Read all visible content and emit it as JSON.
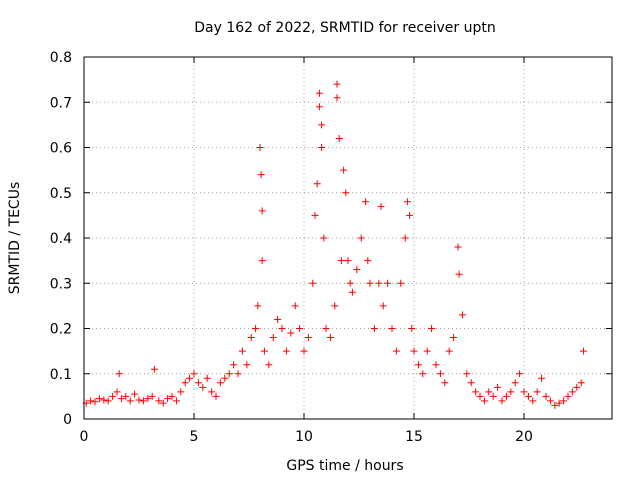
{
  "chart_data": {
    "type": "scatter",
    "title": "Day 162 of 2022, SRMTID for receiver uptn",
    "xlabel": "GPS time / hours",
    "ylabel": "SRMTID / TECUs",
    "xlim": [
      0,
      24
    ],
    "ylim": [
      0,
      0.8
    ],
    "xticks": [
      0,
      5,
      10,
      15,
      20
    ],
    "xtick_labels": [
      "0",
      "5",
      "10",
      "15",
      "20"
    ],
    "yticks": [
      0,
      0.1,
      0.2,
      0.3,
      0.4,
      0.5,
      0.6,
      0.7,
      0.8
    ],
    "ytick_labels": [
      "0",
      "0.1",
      "0.2",
      "0.3",
      "0.4",
      "0.5",
      "0.6",
      "0.7",
      "0.8"
    ],
    "grid": true,
    "marker": "+",
    "color": "#ff0000",
    "series": [
      {
        "name": "SRMTID",
        "x": [
          0.1,
          0.3,
          0.5,
          0.7,
          0.9,
          1.1,
          1.3,
          1.5,
          1.6,
          1.7,
          1.9,
          2.1,
          2.3,
          2.5,
          2.7,
          2.9,
          3.1,
          3.2,
          3.4,
          3.6,
          3.8,
          4.0,
          4.2,
          4.4,
          4.6,
          4.8,
          5.0,
          5.2,
          5.4,
          5.6,
          5.8,
          6.0,
          6.2,
          6.4,
          6.6,
          6.8,
          7.0,
          7.2,
          7.4,
          7.6,
          7.8,
          7.9,
          8.0,
          8.05,
          8.1,
          8.1,
          8.2,
          8.4,
          8.6,
          8.8,
          9.0,
          9.2,
          9.4,
          9.6,
          9.8,
          10.0,
          10.2,
          10.4,
          10.5,
          10.6,
          10.7,
          10.7,
          10.8,
          10.8,
          10.9,
          11.0,
          11.2,
          11.4,
          11.5,
          11.5,
          11.6,
          11.7,
          11.8,
          11.9,
          12.0,
          12.1,
          12.2,
          12.4,
          12.6,
          12.8,
          12.9,
          13.0,
          13.2,
          13.4,
          13.5,
          13.6,
          13.8,
          14.0,
          14.2,
          14.4,
          14.6,
          14.7,
          14.8,
          14.9,
          15.0,
          15.2,
          15.4,
          15.6,
          15.8,
          16.0,
          16.2,
          16.4,
          16.6,
          16.8,
          17.0,
          17.05,
          17.2,
          17.4,
          17.6,
          17.8,
          18.0,
          18.2,
          18.4,
          18.6,
          18.8,
          19.0,
          19.2,
          19.4,
          19.6,
          19.8,
          20.0,
          20.2,
          20.4,
          20.6,
          20.8,
          21.0,
          21.2,
          21.4,
          21.6,
          21.8,
          22.0,
          22.2,
          22.4,
          22.6,
          22.7
        ],
        "y": [
          0.035,
          0.04,
          0.038,
          0.045,
          0.042,
          0.04,
          0.05,
          0.06,
          0.1,
          0.045,
          0.05,
          0.04,
          0.055,
          0.042,
          0.04,
          0.045,
          0.05,
          0.11,
          0.04,
          0.035,
          0.045,
          0.05,
          0.04,
          0.06,
          0.08,
          0.09,
          0.1,
          0.08,
          0.07,
          0.09,
          0.06,
          0.05,
          0.08,
          0.09,
          0.1,
          0.12,
          0.1,
          0.15,
          0.12,
          0.18,
          0.2,
          0.25,
          0.6,
          0.54,
          0.46,
          0.35,
          0.15,
          0.12,
          0.18,
          0.22,
          0.2,
          0.15,
          0.19,
          0.25,
          0.2,
          0.15,
          0.18,
          0.3,
          0.45,
          0.52,
          0.72,
          0.69,
          0.65,
          0.6,
          0.4,
          0.2,
          0.18,
          0.25,
          0.74,
          0.71,
          0.62,
          0.35,
          0.55,
          0.5,
          0.35,
          0.3,
          0.28,
          0.33,
          0.4,
          0.48,
          0.35,
          0.3,
          0.2,
          0.3,
          0.47,
          0.25,
          0.3,
          0.2,
          0.15,
          0.3,
          0.4,
          0.48,
          0.45,
          0.2,
          0.15,
          0.12,
          0.1,
          0.15,
          0.2,
          0.12,
          0.1,
          0.08,
          0.15,
          0.18,
          0.38,
          0.32,
          0.23,
          0.1,
          0.08,
          0.06,
          0.05,
          0.04,
          0.06,
          0.05,
          0.07,
          0.04,
          0.05,
          0.06,
          0.08,
          0.1,
          0.06,
          0.05,
          0.04,
          0.06,
          0.09,
          0.05,
          0.04,
          0.03,
          0.035,
          0.04,
          0.05,
          0.06,
          0.07,
          0.08,
          0.15
        ]
      }
    ]
  }
}
